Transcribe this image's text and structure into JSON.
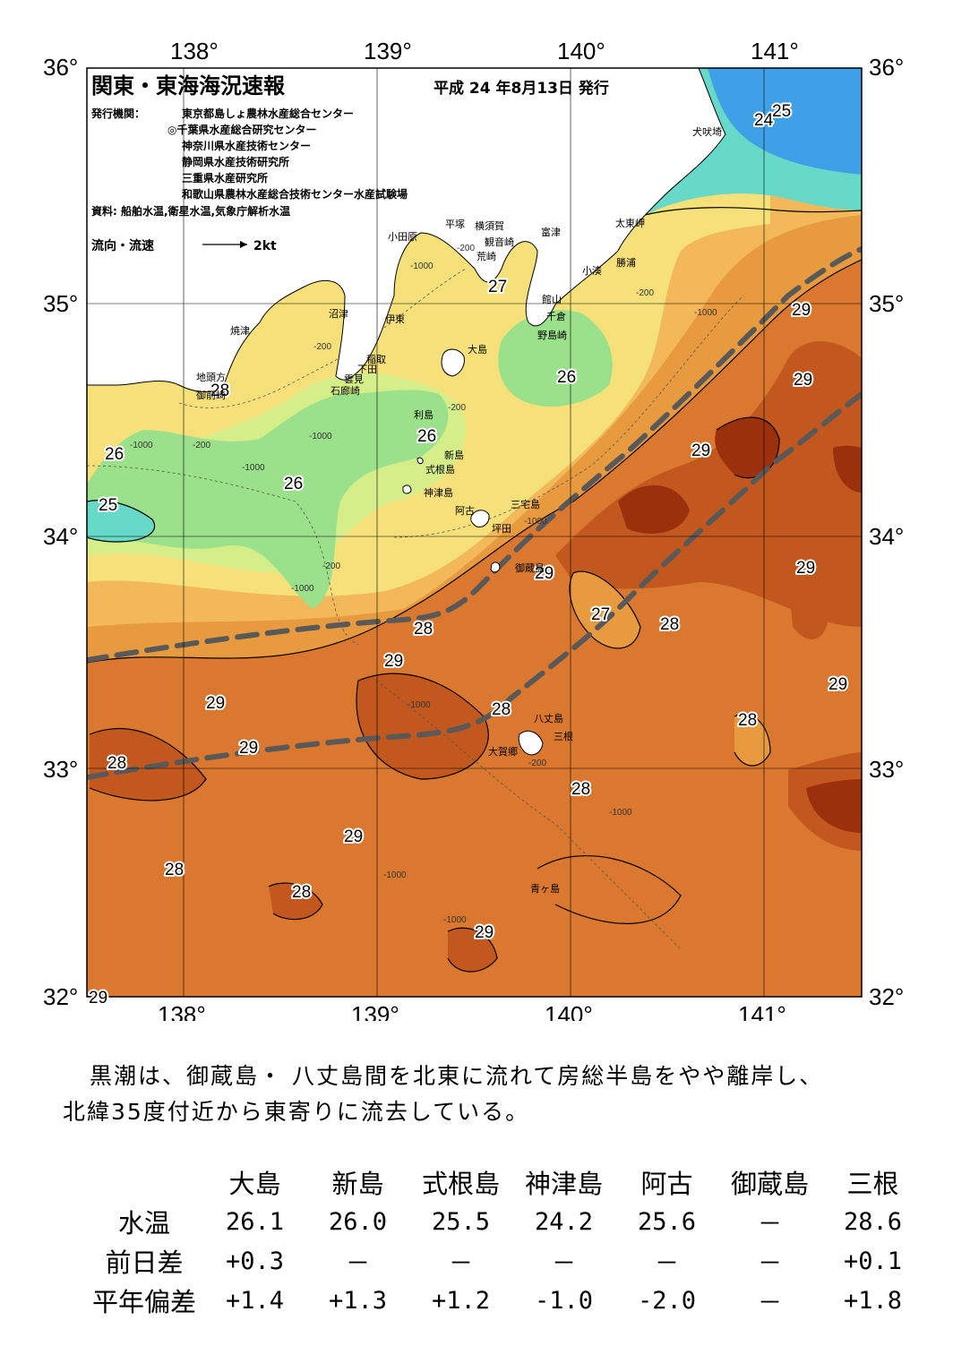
{
  "map": {
    "title": "関東・東海海況速報",
    "issue_date": "平成 24 年8月13日 発行",
    "publisher_label": "発行機関：",
    "publishers": [
      "東京都島しょ農林水産総合センター",
      "◎千葉県水産総合研究センター",
      "神奈川県水産技術センター",
      "静岡県水産技術研究所",
      "三重県水産研究所",
      "和歌山県農林水産総合技術センター水産試験場"
    ],
    "source": "資料: 船舶水温,衛星水温,気象庁解析水温",
    "flow_legend_label": "流向・流速",
    "flow_legend_unit": "2kt",
    "lon_ticks": [
      "138°",
      "139°",
      "140°",
      "141°"
    ],
    "lat_ticks": [
      "36°",
      "35°",
      "34°",
      "33°",
      "32°"
    ],
    "isotherm_labels": [
      "25",
      "24",
      "27",
      "29",
      "29",
      "26",
      "28",
      "26",
      "26",
      "26",
      "25",
      "29",
      "29",
      "29",
      "28",
      "27",
      "28",
      "29",
      "29",
      "29",
      "28",
      "28",
      "29",
      "28",
      "28",
      "29",
      "28",
      "28",
      "29",
      "29",
      "28"
    ],
    "depth_labels": [
      "-200",
      "-1000",
      "-200",
      "-1000",
      "-200",
      "-200",
      "-1000",
      "-1000",
      "-200",
      "-1000",
      "-200",
      "-1000",
      "-1000",
      "-1000",
      "-200",
      "-1000",
      "-1000",
      "-1000"
    ],
    "places": [
      "犬吠埼",
      "太東岬",
      "勝浦",
      "小湊",
      "富津",
      "横須賀",
      "観音崎",
      "荒崎",
      "平塚",
      "小田原",
      "館山",
      "千倉",
      "野島崎",
      "沼津",
      "伊東",
      "稲取",
      "下田",
      "雲見",
      "石廊崎",
      "焼津",
      "地頭方",
      "御前崎",
      "大島",
      "利島",
      "新島",
      "式根島",
      "神津島",
      "三宅島",
      "阿古",
      "坪田",
      "御蔵島",
      "八丈島",
      "三根",
      "大賀郷",
      "青ヶ島"
    ],
    "colors": {
      "land": "#ffffff",
      "t24": "#3fa0e8",
      "t25": "#66d9c8",
      "t26": "#9be08a",
      "t26b": "#d6ee8a",
      "t27": "#f6e07a",
      "t27b": "#f3b85a",
      "t28": "#e89a3e",
      "t28b": "#d9782e",
      "t29": "#c2581e",
      "t29b": "#9a300c",
      "kuroshio": "#595959"
    }
  },
  "summary": {
    "line1": "黒潮は、御蔵島・ 八丈島間を北東に流れて房総半島をやや離岸し、",
    "line2": "北緯35度付近から東寄りに流去している。"
  },
  "table": {
    "columns": [
      "大島",
      "新島",
      "式根島",
      "神津島",
      "阿古",
      "御蔵島",
      "三根"
    ],
    "rows": [
      {
        "label": "水温",
        "values": [
          "26.1",
          "26.0",
          "25.5",
          "24.2",
          "25.6",
          "－",
          "28.6"
        ]
      },
      {
        "label": "前日差",
        "values": [
          "+0.3",
          "－",
          "－",
          "－",
          "－",
          "－",
          "+0.1"
        ]
      },
      {
        "label": "平年偏差",
        "values": [
          "+1.4",
          "+1.3",
          "+1.2",
          "-1.0",
          "-2.0",
          "－",
          "+1.8"
        ]
      }
    ]
  }
}
